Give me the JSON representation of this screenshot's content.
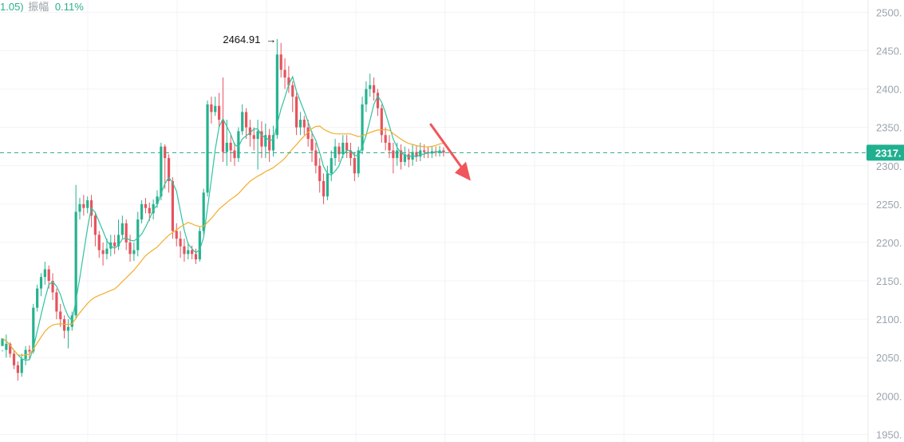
{
  "header": {
    "change_fragment": "1.05)",
    "amplitude_label": "振幅",
    "amplitude_value": "0.11%"
  },
  "colors": {
    "up": "#26b28f",
    "down": "#e5545e",
    "ma_short": "#2fc4a0",
    "ma_long": "#f2ae2c",
    "last_price_line": "#2aa889",
    "badge": "#21b08f",
    "arrow": "#f0555b",
    "grid": "#f2f3f5"
  },
  "chart_data": {
    "type": "candlestick",
    "y_axis": {
      "min": 1940,
      "max": 2516,
      "ticks": [
        1950,
        2000,
        2050,
        2100,
        2150,
        2200,
        2250,
        2300,
        2350,
        2400,
        2450,
        2500
      ],
      "tick_labels": [
        "1950.",
        "2000.",
        "2050.",
        "2100.",
        "2150.",
        "2200.",
        "2250.",
        "2300.",
        "2350.",
        "2400.",
        "2450.",
        "2500."
      ],
      "position": "right"
    },
    "last_price": {
      "value": 2317,
      "label": "2317."
    },
    "annotation": {
      "text": "2464.91",
      "value": 2464.91,
      "arrow": "→"
    },
    "trend_arrow": {
      "from_value": 2335,
      "to_value": 2270,
      "direction": "down"
    },
    "grid": true,
    "candle_count": 115,
    "candles": [
      [
        2065,
        2075,
        2060,
        2058
      ],
      [
        2060,
        2068,
        2080,
        2050
      ],
      [
        2068,
        2055,
        2070,
        2050
      ],
      [
        2055,
        2040,
        2060,
        2035
      ],
      [
        2040,
        2030,
        2045,
        2020
      ],
      [
        2030,
        2048,
        2055,
        2025
      ],
      [
        2048,
        2060,
        2065,
        2040
      ],
      [
        2060,
        2058,
        2066,
        2048
      ],
      [
        2058,
        2115,
        2120,
        2055
      ],
      [
        2115,
        2140,
        2145,
        2110
      ],
      [
        2140,
        2155,
        2160,
        2130
      ],
      [
        2155,
        2165,
        2175,
        2145
      ],
      [
        2165,
        2150,
        2170,
        2140
      ],
      [
        2150,
        2135,
        2160,
        2125
      ],
      [
        2135,
        2110,
        2140,
        2100
      ],
      [
        2110,
        2100,
        2120,
        2090
      ],
      [
        2100,
        2085,
        2105,
        2075
      ],
      [
        2085,
        2090,
        2100,
        2062
      ],
      [
        2090,
        2105,
        2110,
        2085
      ],
      [
        2105,
        2240,
        2275,
        2100
      ],
      [
        2240,
        2250,
        2258,
        2230
      ],
      [
        2250,
        2245,
        2262,
        2235
      ],
      [
        2245,
        2255,
        2260,
        2238
      ],
      [
        2255,
        2235,
        2262,
        2220
      ],
      [
        2235,
        2210,
        2240,
        2195
      ],
      [
        2210,
        2190,
        2215,
        2180
      ],
      [
        2190,
        2185,
        2200,
        2170
      ],
      [
        2185,
        2192,
        2205,
        2178
      ],
      [
        2192,
        2200,
        2210,
        2182
      ],
      [
        2200,
        2195,
        2210,
        2185
      ],
      [
        2195,
        2210,
        2230,
        2190
      ],
      [
        2210,
        2225,
        2235,
        2205
      ],
      [
        2225,
        2200,
        2230,
        2190
      ],
      [
        2200,
        2185,
        2210,
        2175
      ],
      [
        2185,
        2190,
        2200,
        2176
      ],
      [
        2190,
        2230,
        2240,
        2182
      ],
      [
        2230,
        2250,
        2255,
        2225
      ],
      [
        2250,
        2245,
        2258,
        2238
      ],
      [
        2245,
        2238,
        2252,
        2228
      ],
      [
        2238,
        2250,
        2256,
        2230
      ],
      [
        2250,
        2260,
        2268,
        2245
      ],
      [
        2260,
        2325,
        2330,
        2255
      ],
      [
        2325,
        2310,
        2328,
        2270
      ],
      [
        2310,
        2280,
        2315,
        2265
      ],
      [
        2280,
        2215,
        2285,
        2205
      ],
      [
        2215,
        2205,
        2225,
        2195
      ],
      [
        2205,
        2195,
        2215,
        2180
      ],
      [
        2195,
        2185,
        2205,
        2175
      ],
      [
        2185,
        2190,
        2200,
        2178
      ],
      [
        2190,
        2185,
        2196,
        2178
      ],
      [
        2185,
        2178,
        2192,
        2172
      ],
      [
        2178,
        2215,
        2220,
        2175
      ],
      [
        2215,
        2265,
        2270,
        2210
      ],
      [
        2265,
        2380,
        2385,
        2260
      ],
      [
        2380,
        2370,
        2390,
        2355
      ],
      [
        2370,
        2378,
        2390,
        2365
      ],
      [
        2378,
        2360,
        2395,
        2350
      ],
      [
        2360,
        2318,
        2415,
        2305
      ],
      [
        2318,
        2330,
        2360,
        2300
      ],
      [
        2330,
        2320,
        2340,
        2305
      ],
      [
        2320,
        2310,
        2330,
        2300
      ],
      [
        2310,
        2345,
        2350,
        2305
      ],
      [
        2345,
        2370,
        2380,
        2340
      ],
      [
        2370,
        2350,
        2375,
        2335
      ],
      [
        2350,
        2340,
        2360,
        2325
      ],
      [
        2340,
        2335,
        2350,
        2320
      ],
      [
        2335,
        2345,
        2360,
        2295
      ],
      [
        2345,
        2325,
        2358,
        2310
      ],
      [
        2325,
        2340,
        2355,
        2310
      ],
      [
        2340,
        2320,
        2348,
        2305
      ],
      [
        2320,
        2340,
        2352,
        2312
      ],
      [
        2340,
        2445,
        2465,
        2335
      ],
      [
        2445,
        2425,
        2460,
        2415
      ],
      [
        2425,
        2415,
        2440,
        2400
      ],
      [
        2415,
        2405,
        2430,
        2395
      ],
      [
        2405,
        2390,
        2410,
        2370
      ],
      [
        2390,
        2350,
        2395,
        2340
      ],
      [
        2350,
        2360,
        2370,
        2340
      ],
      [
        2360,
        2350,
        2365,
        2340
      ],
      [
        2350,
        2335,
        2360,
        2325
      ],
      [
        2335,
        2320,
        2345,
        2305
      ],
      [
        2320,
        2300,
        2330,
        2290
      ],
      [
        2300,
        2280,
        2310,
        2265
      ],
      [
        2280,
        2260,
        2290,
        2250
      ],
      [
        2260,
        2290,
        2300,
        2255
      ],
      [
        2290,
        2310,
        2320,
        2280
      ],
      [
        2310,
        2325,
        2335,
        2300
      ],
      [
        2325,
        2315,
        2330,
        2305
      ],
      [
        2315,
        2330,
        2340,
        2310
      ],
      [
        2330,
        2320,
        2340,
        2310
      ],
      [
        2320,
        2310,
        2330,
        2300
      ],
      [
        2310,
        2290,
        2318,
        2280
      ],
      [
        2290,
        2320,
        2325,
        2285
      ],
      [
        2320,
        2380,
        2390,
        2315
      ],
      [
        2380,
        2400,
        2410,
        2370
      ],
      [
        2400,
        2405,
        2420,
        2390
      ],
      [
        2405,
        2395,
        2415,
        2385
      ],
      [
        2395,
        2375,
        2400,
        2365
      ],
      [
        2375,
        2340,
        2380,
        2330
      ],
      [
        2340,
        2330,
        2350,
        2320
      ],
      [
        2330,
        2320,
        2340,
        2310
      ],
      [
        2320,
        2310,
        2330,
        2290
      ],
      [
        2310,
        2320,
        2330,
        2300
      ],
      [
        2320,
        2305,
        2328,
        2295
      ],
      [
        2305,
        2315,
        2325,
        2300
      ],
      [
        2315,
        2308,
        2322,
        2298
      ],
      [
        2308,
        2318,
        2328,
        2300
      ],
      [
        2318,
        2312,
        2326,
        2305
      ],
      [
        2312,
        2320,
        2330,
        2306
      ],
      [
        2320,
        2318,
        2328,
        2310
      ],
      [
        2318,
        2316,
        2324,
        2310
      ],
      [
        2316,
        2319,
        2326,
        2310
      ],
      [
        2319,
        2317,
        2325,
        2312
      ],
      [
        2317,
        2320,
        2326,
        2312
      ],
      [
        2320,
        2317,
        2324,
        2312
      ]
    ]
  }
}
